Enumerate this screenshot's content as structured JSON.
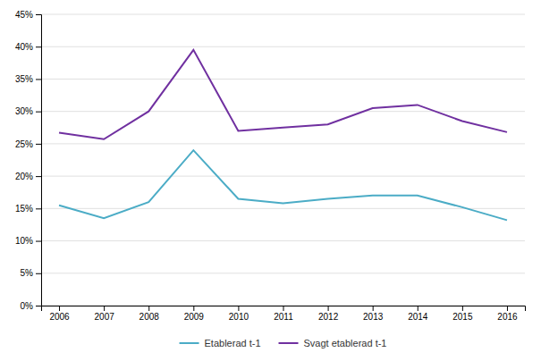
{
  "chart_data": {
    "type": "line",
    "x": [
      2006,
      2007,
      2008,
      2009,
      2010,
      2011,
      2012,
      2013,
      2014,
      2015,
      2016
    ],
    "series": [
      {
        "name": "Etablerad t-1",
        "color": "#4BACC6",
        "values": [
          0.155,
          0.135,
          0.16,
          0.24,
          0.165,
          0.158,
          0.165,
          0.17,
          0.17,
          0.152,
          0.132
        ]
      },
      {
        "name": "Svagt etablerad t-1",
        "color": "#7030A0",
        "values": [
          0.267,
          0.257,
          0.3,
          0.395,
          0.27,
          0.275,
          0.28,
          0.305,
          0.31,
          0.285,
          0.268
        ]
      }
    ],
    "xlim": [
      2005.6,
      2016.4
    ],
    "xticks": [
      2006,
      2007,
      2008,
      2009,
      2010,
      2011,
      2012,
      2013,
      2014,
      2015,
      2016
    ],
    "ylim": [
      0,
      0.45
    ],
    "yticks": [
      {
        "value": 0,
        "label": "0%"
      },
      {
        "value": 0.05,
        "label": "5%"
      },
      {
        "value": 0.1,
        "label": "10%"
      },
      {
        "value": 0.15,
        "label": "15%"
      },
      {
        "value": 0.2,
        "label": "20%"
      },
      {
        "value": 0.25,
        "label": "25%"
      },
      {
        "value": 0.3,
        "label": "30%"
      },
      {
        "value": 0.35,
        "label": "35%"
      },
      {
        "value": 0.4,
        "label": "40%"
      },
      {
        "value": 0.45,
        "label": "45%"
      }
    ],
    "grid": true,
    "legend": "bottom"
  }
}
